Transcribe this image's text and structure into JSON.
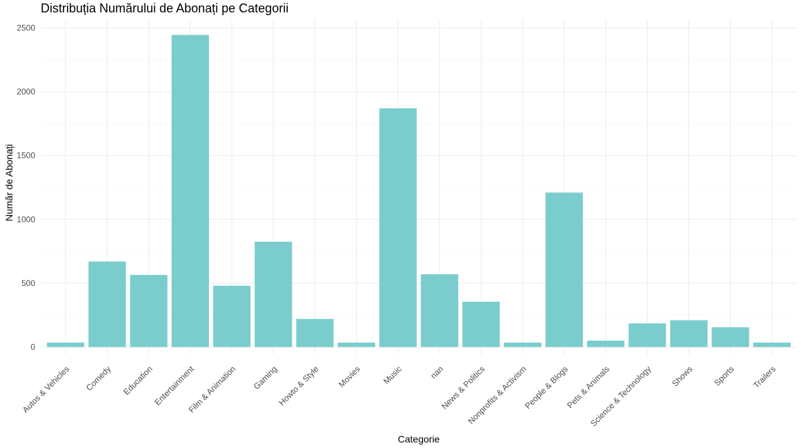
{
  "chart_data": {
    "type": "bar",
    "title": "Distribuția Numărului de Abonați pe Categorii",
    "xlabel": "Categorie",
    "ylabel": "Număr de Abonați",
    "categories": [
      "Autos & Vehicles",
      "Comedy",
      "Education",
      "Entertainment",
      "Film & Animation",
      "Gaming",
      "Howto & Style",
      "Movies",
      "Music",
      "nan",
      "News & Politics",
      "Nonprofits & Activism",
      "People & Blogs",
      "Pets & Animals",
      "Science & Technology",
      "Shows",
      "Sports",
      "Trailers"
    ],
    "values": [
      35,
      670,
      565,
      2445,
      480,
      825,
      220,
      35,
      1870,
      570,
      355,
      35,
      1210,
      50,
      185,
      210,
      155,
      35
    ],
    "ylim": [
      0,
      2560
    ],
    "yticks": [
      0,
      500,
      1000,
      1500,
      2000,
      2500
    ],
    "bar_color": "#7bcdcd",
    "grid": true,
    "legend": "none"
  }
}
